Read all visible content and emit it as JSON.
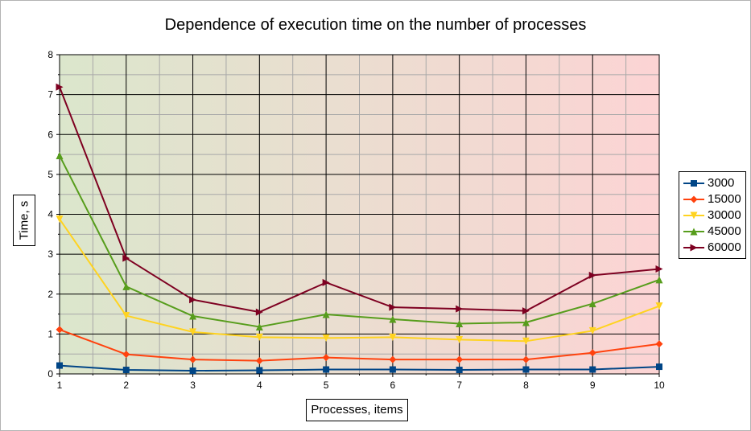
{
  "chart_data": {
    "type": "line",
    "title": "Dependence of execution time on the number of processes",
    "xlabel": "Processes, items",
    "ylabel": "Time, s",
    "x": [
      1,
      2,
      3,
      4,
      5,
      6,
      7,
      8,
      9,
      10
    ],
    "xlim": [
      1,
      10
    ],
    "ylim": [
      0,
      8
    ],
    "yticks": [
      0,
      1,
      2,
      3,
      4,
      5,
      6,
      7,
      8
    ],
    "grid": true,
    "legend_position": "right",
    "background_gradient": [
      "#dbe6cc",
      "#fcd4d4"
    ],
    "series": [
      {
        "name": "3000",
        "color": "#004586",
        "marker": "square",
        "values": [
          0.21,
          0.1,
          0.08,
          0.09,
          0.11,
          0.11,
          0.1,
          0.11,
          0.11,
          0.18
        ]
      },
      {
        "name": "15000",
        "color": "#ff420e",
        "marker": "diamond",
        "values": [
          1.11,
          0.49,
          0.36,
          0.33,
          0.41,
          0.36,
          0.36,
          0.36,
          0.53,
          0.75
        ]
      },
      {
        "name": "30000",
        "color": "#ffd320",
        "marker": "triangle-down",
        "values": [
          3.88,
          1.46,
          1.05,
          0.92,
          0.9,
          0.92,
          0.86,
          0.82,
          1.08,
          1.7
        ]
      },
      {
        "name": "45000",
        "color": "#579d1c",
        "marker": "triangle-up",
        "values": [
          5.47,
          2.19,
          1.45,
          1.18,
          1.49,
          1.37,
          1.26,
          1.29,
          1.76,
          2.36
        ]
      },
      {
        "name": "60000",
        "color": "#7e0021",
        "marker": "triangle-right",
        "values": [
          7.19,
          2.9,
          1.86,
          1.55,
          2.29,
          1.67,
          1.63,
          1.58,
          2.47,
          2.63
        ]
      }
    ]
  }
}
